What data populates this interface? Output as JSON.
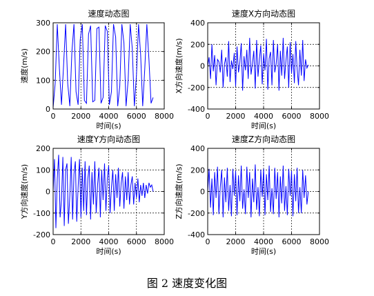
{
  "caption": "图 2  速度变化图",
  "colors": {
    "series": "#0000ff",
    "axis": "#000000",
    "grid": "#000000",
    "background": "#ffffff"
  },
  "chart_data": [
    {
      "type": "line",
      "title": "速度动态图",
      "xlabel": "时间(s)",
      "ylabel": "速度(m/s)",
      "xlim": [
        0,
        8000
      ],
      "ylim": [
        0,
        300
      ],
      "xticks": [
        0,
        2000,
        4000,
        6000,
        8000
      ],
      "yticks": [
        0,
        100,
        200,
        300
      ],
      "grid": true,
      "series": [
        {
          "x": [
            0,
            150,
            300,
            450,
            600,
            750,
            900,
            1050,
            1200,
            1350,
            1500,
            1650,
            1800,
            1950,
            2100,
            2250,
            2400,
            2550,
            2700,
            2850,
            3000,
            3150,
            3300,
            3450,
            3600,
            3750,
            3900,
            4050,
            4200,
            4350,
            4500,
            4650,
            4800,
            4950,
            5100,
            5250,
            5400,
            5550,
            5700,
            5850,
            6000,
            6150,
            6300,
            6450,
            6600,
            6750,
            6900,
            7050,
            7200
          ],
          "y": [
            5,
            90,
            295,
            140,
            15,
            150,
            295,
            90,
            10,
            200,
            295,
            60,
            15,
            240,
            295,
            30,
            20,
            260,
            290,
            25,
            30,
            280,
            285,
            20,
            40,
            290,
            270,
            15,
            60,
            295,
            250,
            10,
            80,
            295,
            230,
            10,
            100,
            295,
            210,
            10,
            120,
            295,
            190,
            10,
            140,
            295,
            170,
            20,
            40
          ]
        }
      ]
    },
    {
      "type": "line",
      "title": "速度X方向动态图",
      "xlabel": "时间(s)",
      "ylabel": "X方向速度(m/s)",
      "xlim": [
        0,
        8000
      ],
      "ylim": [
        -400,
        400
      ],
      "xticks": [
        0,
        2000,
        4000,
        6000,
        8000
      ],
      "yticks": [
        -400,
        -200,
        0,
        200,
        400
      ],
      "grid": true,
      "series": [
        {
          "x": [
            0,
            100,
            200,
            300,
            400,
            500,
            600,
            700,
            800,
            900,
            1000,
            1100,
            1200,
            1300,
            1400,
            1500,
            1600,
            1700,
            1800,
            1900,
            2000,
            2100,
            2200,
            2300,
            2400,
            2500,
            2600,
            2700,
            2800,
            2900,
            3000,
            3100,
            3200,
            3300,
            3400,
            3500,
            3600,
            3700,
            3800,
            3900,
            4000,
            4100,
            4200,
            4300,
            4400,
            4500,
            4600,
            4700,
            4800,
            4900,
            5000,
            5100,
            5200,
            5300,
            5400,
            5500,
            5600,
            5700,
            5800,
            5900,
            6000,
            6100,
            6200,
            6300,
            6400,
            6500,
            6600,
            6700,
            6800,
            6900,
            7000,
            7100,
            7200
          ],
          "y": [
            0,
            80,
            -120,
            200,
            -50,
            100,
            -180,
            60,
            40,
            -60,
            150,
            -200,
            20,
            80,
            -100,
            230,
            -150,
            50,
            -30,
            120,
            -190,
            180,
            -60,
            30,
            210,
            -230,
            90,
            -40,
            150,
            -120,
            260,
            -80,
            20,
            140,
            -210,
            240,
            -100,
            60,
            190,
            -170,
            110,
            -40,
            250,
            -220,
            70,
            130,
            -180,
            240,
            -60,
            20,
            200,
            -230,
            140,
            -90,
            260,
            -120,
            50,
            180,
            -200,
            220,
            -70,
            110,
            -160,
            230,
            -30,
            -180,
            150,
            -90,
            240,
            -140,
            60,
            -20,
            10
          ]
        }
      ]
    },
    {
      "type": "line",
      "title": "速度Y方向动态图",
      "xlabel": "时间(s)",
      "ylabel": "Y方向速度(m/s)",
      "xlim": [
        0,
        8000
      ],
      "ylim": [
        -200,
        200
      ],
      "xticks": [
        0,
        2000,
        4000,
        6000,
        8000
      ],
      "yticks": [
        -200,
        -100,
        0,
        100,
        200
      ],
      "grid": true,
      "series": [
        {
          "x": [
            0,
            100,
            200,
            300,
            400,
            500,
            600,
            700,
            800,
            900,
            1000,
            1100,
            1200,
            1300,
            1400,
            1500,
            1600,
            1700,
            1800,
            1900,
            2000,
            2100,
            2200,
            2300,
            2400,
            2500,
            2600,
            2700,
            2800,
            2900,
            3000,
            3100,
            3200,
            3300,
            3400,
            3500,
            3600,
            3700,
            3800,
            3900,
            4000,
            4100,
            4200,
            4300,
            4400,
            4500,
            4600,
            4700,
            4800,
            4900,
            5000,
            5100,
            5200,
            5300,
            5400,
            5500,
            5600,
            5700,
            5800,
            5900,
            6000,
            6100,
            6200,
            6300,
            6400,
            6500,
            6600,
            6700,
            6800,
            6900,
            7000,
            7100,
            7200
          ],
          "y": [
            0,
            150,
            -170,
            60,
            170,
            -120,
            -40,
            160,
            -160,
            100,
            130,
            -150,
            -20,
            160,
            -130,
            80,
            140,
            -140,
            20,
            150,
            -120,
            110,
            -90,
            140,
            -110,
            60,
            120,
            -130,
            90,
            -60,
            140,
            -100,
            30,
            110,
            -120,
            100,
            -40,
            130,
            -90,
            60,
            120,
            -100,
            20,
            100,
            -90,
            80,
            -30,
            110,
            -70,
            40,
            90,
            -80,
            70,
            -40,
            90,
            -60,
            30,
            70,
            -60,
            40,
            -30,
            60,
            -50,
            30,
            -20,
            40,
            -30,
            30,
            -10,
            40,
            20,
            30,
            0
          ]
        }
      ]
    },
    {
      "type": "line",
      "title": "速度Z方向动态图",
      "xlabel": "时间(s)",
      "ylabel": "Z方向速度(m/s)",
      "xlim": [
        0,
        8000
      ],
      "ylim": [
        -400,
        400
      ],
      "xticks": [
        0,
        2000,
        4000,
        6000,
        8000
      ],
      "yticks": [
        -400,
        -200,
        0,
        200,
        400
      ],
      "grid": true,
      "series": [
        {
          "x": [
            0,
            100,
            200,
            300,
            400,
            500,
            600,
            700,
            800,
            900,
            1000,
            1100,
            1200,
            1300,
            1400,
            1500,
            1600,
            1700,
            1800,
            1900,
            2000,
            2100,
            2200,
            2300,
            2400,
            2500,
            2600,
            2700,
            2800,
            2900,
            3000,
            3100,
            3200,
            3300,
            3400,
            3500,
            3600,
            3700,
            3800,
            3900,
            4000,
            4100,
            4200,
            4300,
            4400,
            4500,
            4600,
            4700,
            4800,
            4900,
            5000,
            5100,
            5200,
            5300,
            5400,
            5500,
            5600,
            5700,
            5800,
            5900,
            6000,
            6100,
            6200,
            6300,
            6400,
            6500,
            6600,
            6700,
            6800,
            6900,
            7000,
            7100,
            7200
          ],
          "y": [
            0,
            210,
            -150,
            120,
            -220,
            180,
            -60,
            230,
            -210,
            40,
            200,
            -240,
            130,
            -100,
            220,
            -180,
            60,
            -230,
            210,
            -40,
            190,
            -220,
            150,
            -90,
            240,
            -160,
            20,
            -210,
            230,
            -60,
            180,
            -240,
            120,
            -100,
            250,
            -170,
            40,
            -230,
            200,
            -50,
            210,
            -220,
            160,
            -80,
            240,
            -190,
            30,
            -210,
            220,
            -70,
            180,
            -240,
            140,
            -110,
            240,
            -180,
            50,
            -220,
            210,
            -40,
            190,
            -230,
            160,
            -90,
            220,
            -200,
            40,
            -200,
            200,
            -60,
            150,
            -120,
            0
          ]
        }
      ]
    }
  ]
}
